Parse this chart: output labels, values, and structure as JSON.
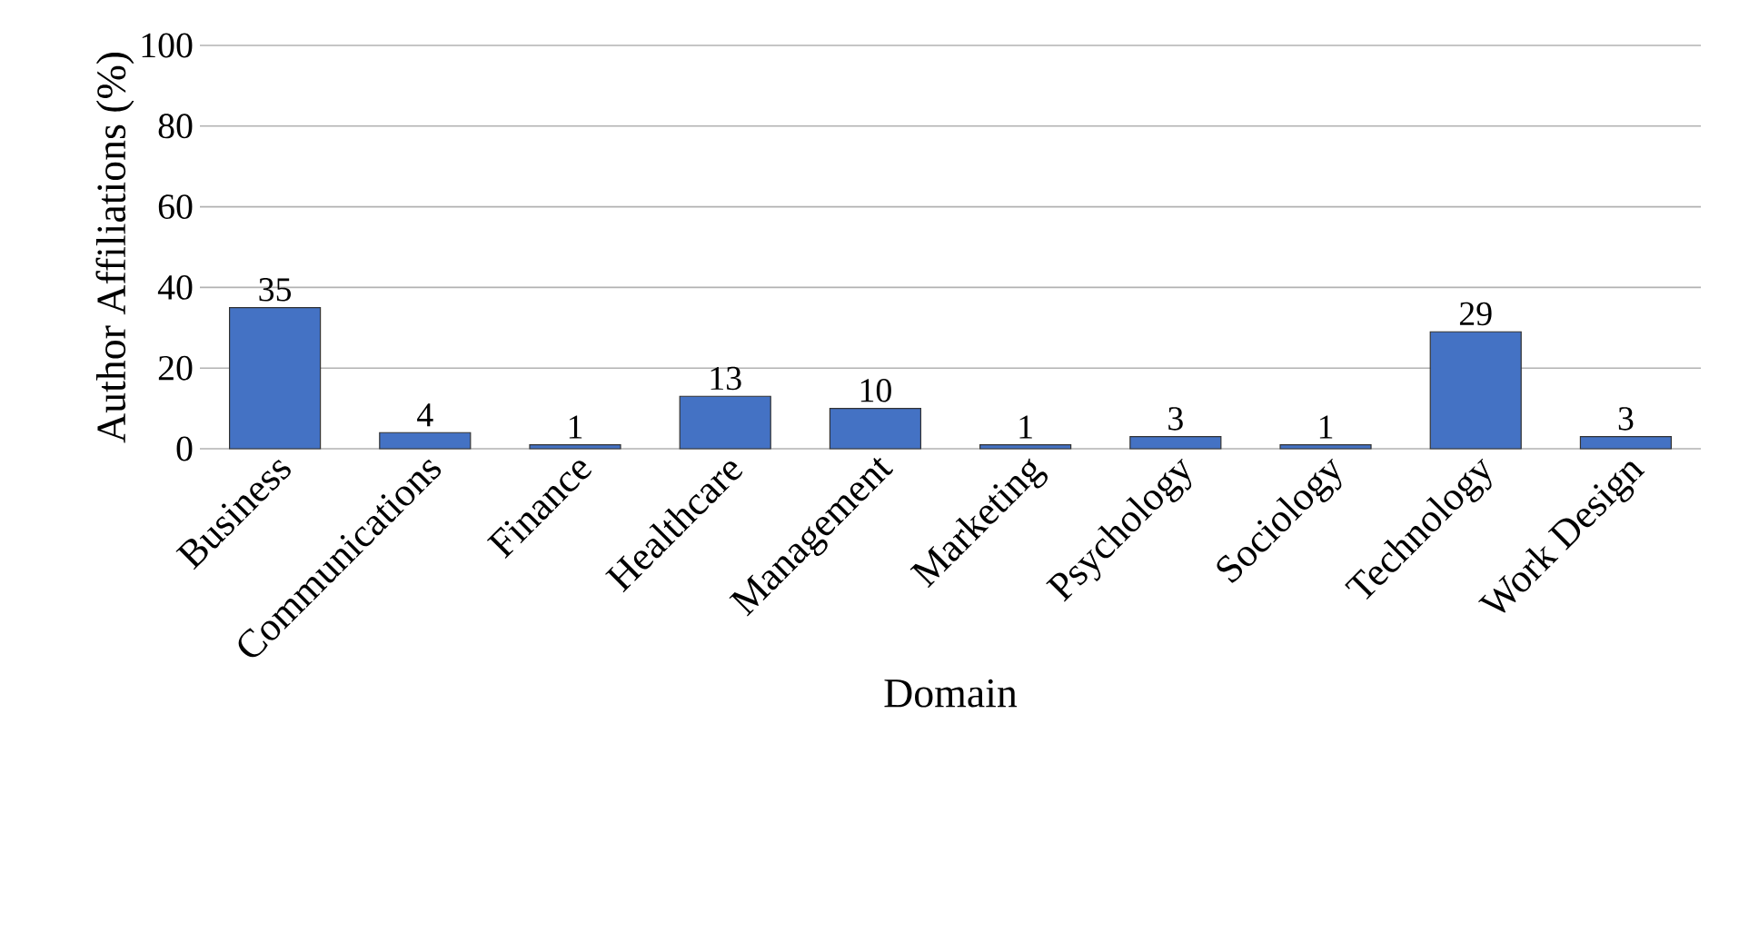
{
  "chart_data": {
    "type": "bar",
    "xlabel": "Domain",
    "ylabel": "Author Affiliations  (%)",
    "categories": [
      "Business",
      "Communications",
      "Finance",
      "Healthcare",
      "Management",
      "Marketing",
      "Psychology",
      "Sociology",
      "Technology",
      "Work Design"
    ],
    "values": [
      35,
      4,
      1,
      13,
      10,
      1,
      3,
      1,
      29,
      3
    ],
    "color": "#4472c4",
    "data_labels": true,
    "ylim": [
      0,
      100
    ],
    "yticks": [
      0,
      20,
      40,
      60,
      80,
      100
    ],
    "grid": "y"
  }
}
